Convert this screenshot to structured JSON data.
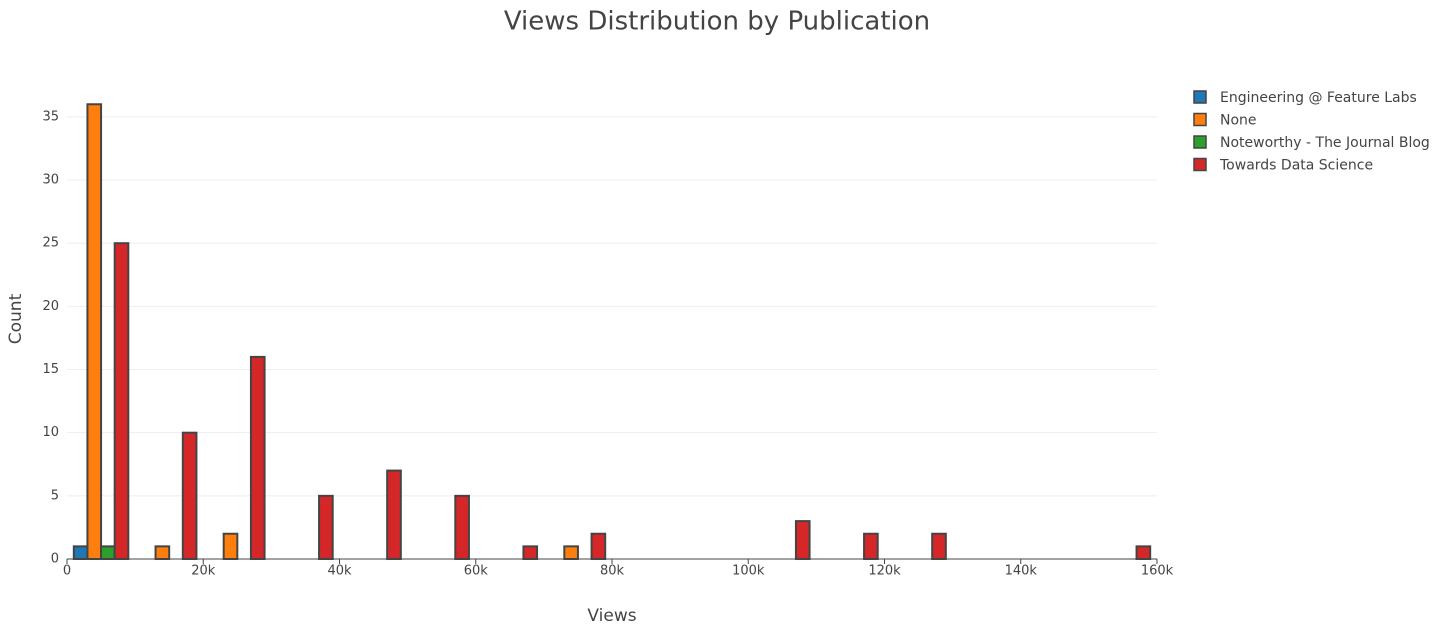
{
  "chart_data": {
    "type": "histogram",
    "title": "Views Distribution by Publication",
    "x_label": "Views",
    "y_label": "Count",
    "bins": [
      0,
      10000,
      20000,
      30000,
      40000,
      50000,
      60000,
      70000,
      80000,
      90000,
      100000,
      110000,
      120000,
      130000,
      140000,
      150000,
      160000
    ],
    "series": [
      {
        "name": "Engineering @ Feature Labs",
        "color": "#1f77b4",
        "values": [
          1,
          0,
          0,
          0,
          0,
          0,
          0,
          0,
          0,
          0,
          0,
          0,
          0,
          0,
          0,
          0
        ]
      },
      {
        "name": "None",
        "color": "#ff7f0e",
        "values": [
          36,
          1,
          2,
          0,
          0,
          0,
          0,
          1,
          0,
          0,
          0,
          0,
          0,
          0,
          0,
          0
        ]
      },
      {
        "name": "Noteworthy - The Journal Blog",
        "color": "#2ca02c",
        "values": [
          1,
          0,
          0,
          0,
          0,
          0,
          0,
          0,
          0,
          0,
          0,
          0,
          0,
          0,
          0,
          0
        ]
      },
      {
        "name": "Towards Data Science",
        "color": "#d62728",
        "values": [
          25,
          10,
          16,
          5,
          7,
          5,
          1,
          2,
          0,
          0,
          3,
          2,
          2,
          0,
          0,
          1
        ]
      }
    ],
    "xlim": [
      0,
      160000
    ],
    "xticks": [
      0,
      {
        "value": 20000,
        "label": "20k"
      },
      {
        "value": 40000,
        "label": "40k"
      },
      {
        "value": 60000,
        "label": "60k"
      },
      {
        "value": 80000,
        "label": "80k"
      },
      {
        "value": 100000,
        "label": "100k"
      },
      {
        "value": 120000,
        "label": "120k"
      },
      {
        "value": 140000,
        "label": "140k"
      },
      {
        "value": 160000,
        "label": "160k"
      }
    ],
    "ylim": [
      0,
      38
    ],
    "yticks": [
      0,
      5,
      10,
      15,
      20,
      25,
      30,
      35
    ],
    "grid": true,
    "legend": "top-right"
  }
}
